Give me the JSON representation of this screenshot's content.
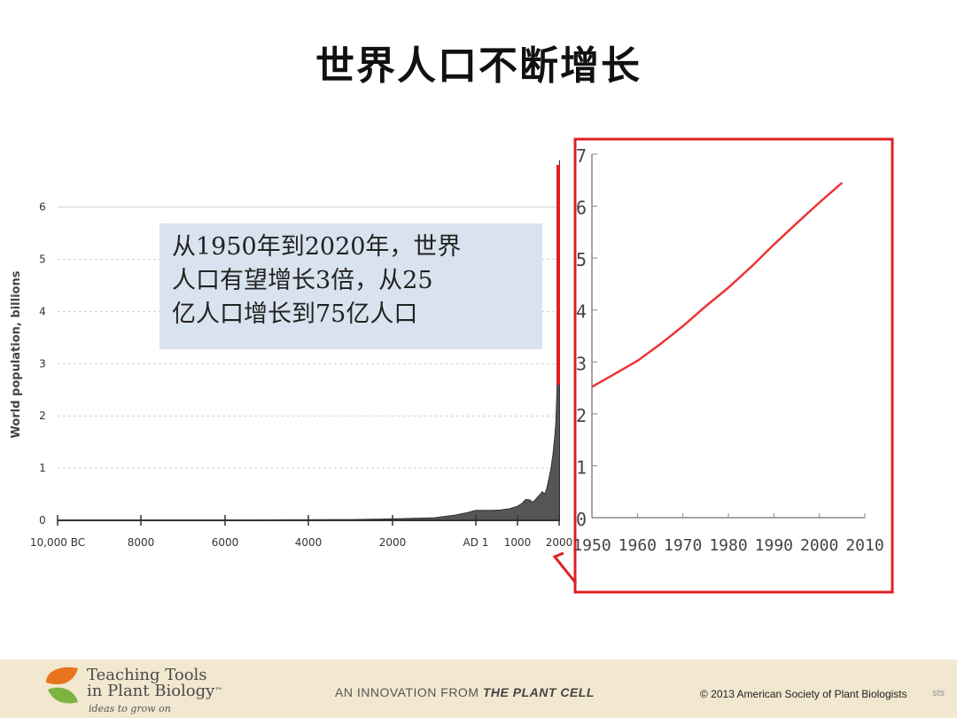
{
  "slide": {
    "title": "世界人口不断增长"
  },
  "callout": {
    "lines": [
      "从1950年到2020年，世界",
      "人口有望增长3倍，从25",
      "亿人口增长到75亿人口"
    ]
  },
  "footer": {
    "logo_line1": "Teaching Tools",
    "logo_line2": "in Plant Biology",
    "logo_tm": "™",
    "tagline": "ideas to grow on",
    "innovation_prefix": "AN INNOVATION FROM",
    "innovation_brand": "THE PLANT CELL",
    "copyright": "© 2013 American Society of Plant Biologists",
    "copyright_tail": "sts"
  },
  "colors": {
    "area_fill": "#555555",
    "highlight_red": "#e02020",
    "inset_line": "#ee3333",
    "callout_bg": "#d9e3ef"
  },
  "chart_data": [
    {
      "type": "area",
      "title": "",
      "ylabel": "World population, billions",
      "xlabel": "",
      "x_tick_labels": [
        "10,000 BC",
        "8000",
        "6000",
        "4000",
        "2000",
        "AD 1",
        "1000",
        "2000"
      ],
      "x_ticks": [
        -10000,
        -8000,
        -6000,
        -4000,
        -2000,
        1,
        1000,
        2000
      ],
      "xlim": [
        -10000,
        2010
      ],
      "ylim": [
        0,
        6.5
      ],
      "y_ticks": [
        0,
        1,
        2,
        3,
        4,
        5,
        6
      ],
      "grid": true,
      "series": [
        {
          "x": [
            -10000,
            -8000,
            -6000,
            -4000,
            -3000,
            -2000,
            -1000,
            -500,
            -200,
            1,
            200,
            400,
            600,
            800,
            1000,
            1100,
            1200,
            1300,
            1350,
            1400,
            1500,
            1600,
            1650,
            1700,
            1750,
            1800,
            1850,
            1900,
            1920,
            1940,
            1950,
            1960,
            1970,
            1980,
            1990,
            2000,
            2010
          ],
          "y": [
            0.004,
            0.005,
            0.007,
            0.012,
            0.016,
            0.028,
            0.05,
            0.1,
            0.15,
            0.19,
            0.19,
            0.19,
            0.2,
            0.22,
            0.27,
            0.32,
            0.4,
            0.39,
            0.35,
            0.37,
            0.46,
            0.55,
            0.5,
            0.6,
            0.79,
            0.98,
            1.26,
            1.65,
            1.86,
            2.3,
            2.52,
            3.02,
            3.69,
            4.43,
            5.26,
            6.07,
            6.9
          ]
        }
      ]
    },
    {
      "type": "line",
      "title": "",
      "xlabel": "",
      "ylabel": "",
      "x_ticks": [
        1950,
        1960,
        1970,
        1980,
        1990,
        2000,
        2010
      ],
      "y_ticks": [
        0,
        1,
        2,
        3,
        4,
        5,
        6,
        7
      ],
      "xlim": [
        1950,
        2010
      ],
      "ylim": [
        0,
        7
      ],
      "series": [
        {
          "x": [
            1950,
            1955,
            1960,
            1965,
            1970,
            1975,
            1980,
            1985,
            1990,
            1995,
            2000,
            2005
          ],
          "y": [
            2.52,
            2.77,
            3.02,
            3.34,
            3.69,
            4.07,
            4.43,
            4.83,
            5.26,
            5.67,
            6.07,
            6.45
          ]
        }
      ]
    }
  ]
}
